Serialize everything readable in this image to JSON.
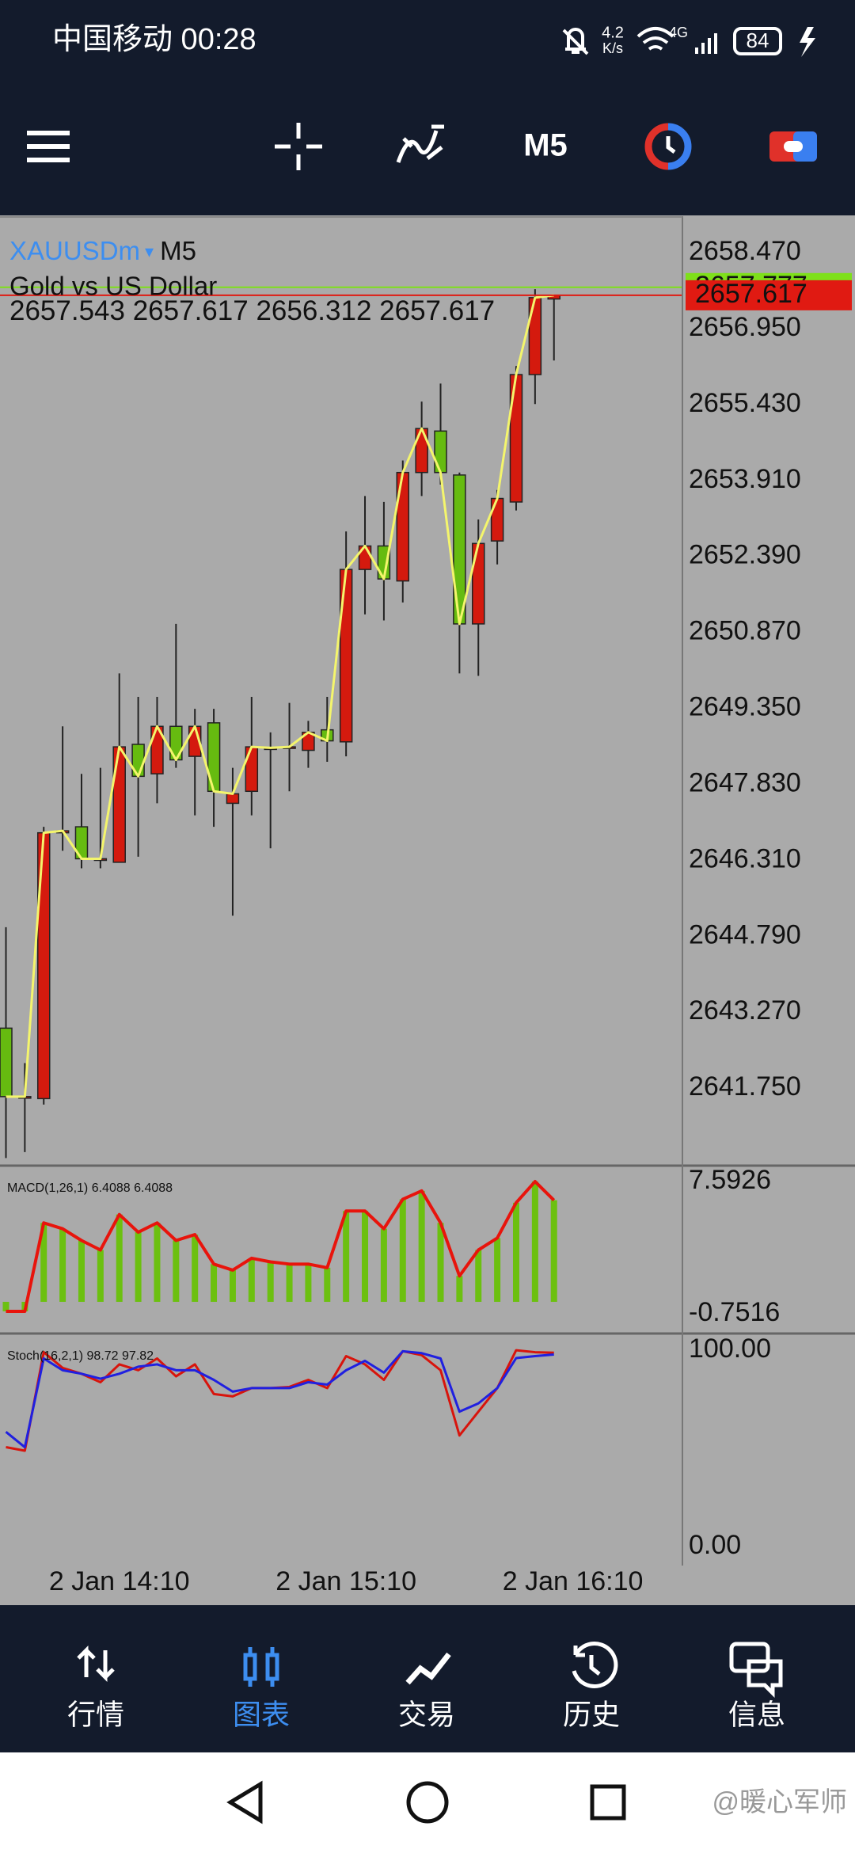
{
  "status_bar": {
    "carrier_time": "中国移动 00:28",
    "speed": "4.2",
    "speed_unit": "K/s",
    "network": "4G",
    "battery": "84"
  },
  "toolbar": {
    "timeframe": "M5"
  },
  "nav": [
    "行情",
    "图表",
    "交易",
    "历史",
    "信息"
  ],
  "watermark": "@暖心军师",
  "chart_data": [
    {
      "type": "candlestick",
      "symbol": "XAUUSDm",
      "timeframe": "M5",
      "description": "Gold vs US Dollar",
      "open": [
        2642.95,
        2641.58,
        2641.54,
        2646.86,
        2646.98,
        2646.34,
        2646.27,
        2648.63,
        2648.04,
        2648.99,
        2648.39,
        2649.06,
        2647.45,
        2647.69,
        2648.56,
        2648.56,
        2648.51,
        2648.92,
        2648.68,
        2652.13,
        2652.6,
        2651.9,
        2654.07,
        2654.9,
        2654.02,
        2651.04,
        2652.7,
        2653.48,
        2656.03,
        2657.543
      ],
      "high": [
        2644.97,
        2642.25,
        2646.98,
        2648.99,
        2648.04,
        2648.16,
        2650.05,
        2649.58,
        2649.58,
        2651.04,
        2649.34,
        2649.34,
        2648.16,
        2649.58,
        2648.87,
        2649.46,
        2649.1,
        2649.58,
        2652.89,
        2653.6,
        2653.48,
        2654.31,
        2655.49,
        2655.85,
        2654.07,
        2653.13,
        2653.72,
        2656.2,
        2657.74,
        2657.617
      ],
      "low": [
        2640.35,
        2640.47,
        2641.42,
        2646.5,
        2646.15,
        2646.15,
        2646.27,
        2646.38,
        2647.45,
        2648.16,
        2647.21,
        2646.98,
        2645.2,
        2647.21,
        2646.55,
        2647.69,
        2648.16,
        2648.28,
        2648.39,
        2651.23,
        2651.11,
        2651.47,
        2653.6,
        2653.83,
        2650.05,
        2650.0,
        2652.23,
        2653.31,
        2655.44,
        2656.312
      ],
      "close": [
        2641.58,
        2641.58,
        2646.86,
        2646.9,
        2646.34,
        2646.34,
        2648.58,
        2647.99,
        2648.99,
        2648.32,
        2648.99,
        2647.69,
        2647.64,
        2648.58,
        2648.56,
        2648.58,
        2648.87,
        2648.7,
        2652.13,
        2652.6,
        2651.94,
        2654.07,
        2654.95,
        2654.07,
        2651.04,
        2652.65,
        2653.55,
        2656.03,
        2657.57,
        2657.617
      ],
      "up_color": "#d41a0e",
      "down_color": "#66bb10",
      "line_color": "#f4f56c",
      "bid_color": "#e01a12",
      "ask": 2657.777,
      "ask_color": "#7ee01a",
      "ylim": [
        2640.23,
        2659.2
      ],
      "yticks": [
        {
          "value": 2658.47,
          "label": "2658.470"
        },
        {
          "value": 2656.95,
          "label": "2656.950"
        },
        {
          "value": 2655.43,
          "label": "2655.430"
        },
        {
          "value": 2653.91,
          "label": "2653.910"
        },
        {
          "value": 2652.39,
          "label": "2652.390"
        },
        {
          "value": 2650.87,
          "label": "2650.870"
        },
        {
          "value": 2649.35,
          "label": "2649.350"
        },
        {
          "value": 2647.83,
          "label": "2647.830"
        },
        {
          "value": 2646.31,
          "label": "2646.310"
        },
        {
          "value": 2644.79,
          "label": "2644.790"
        },
        {
          "value": 2643.27,
          "label": "2643.270"
        },
        {
          "value": 2641.75,
          "label": "2641.750"
        }
      ],
      "xticks": [
        {
          "value": 6,
          "label": "2 Jan 14:10"
        },
        {
          "value": 18,
          "label": "2 Jan 15:10"
        },
        {
          "value": 30,
          "label": "2 Jan 16:10"
        }
      ]
    },
    {
      "type": "bar",
      "ylim": [
        -1.85,
        8.49
      ],
      "yticks": [
        7.5926,
        -0.7516
      ],
      "series": [
        {
          "name": "MACD(1,26,1)",
          "style": "bar",
          "color": "#6cc010",
          "values": [
            -0.6,
            -0.6,
            4.98,
            4.61,
            3.87,
            3.27,
            5.51,
            4.39,
            4.98,
            3.87,
            4.24,
            2.38,
            2.0,
            2.75,
            2.52,
            2.38,
            2.38,
            2.15,
            5.73,
            5.73,
            4.61,
            6.47,
            7.0,
            4.98,
            1.63,
            3.27,
            4.02,
            6.25,
            7.59,
            6.4088
          ]
        },
        {
          "style": "line",
          "color": "#e8140c",
          "values": [
            -0.6,
            -0.6,
            4.98,
            4.61,
            3.87,
            3.27,
            5.51,
            4.39,
            4.98,
            3.87,
            4.24,
            2.38,
            2.0,
            2.75,
            2.52,
            2.38,
            2.38,
            2.15,
            5.73,
            5.73,
            4.61,
            6.47,
            7.0,
            4.98,
            1.63,
            3.27,
            4.02,
            6.25,
            7.59,
            6.4088
          ]
        }
      ]
    },
    {
      "type": "line",
      "ylim": [
        -9.7,
        107.7
      ],
      "yticks": [
        {
          "value": 100,
          "label": "100.00"
        },
        {
          "value": 0,
          "label": "0.00"
        }
      ],
      "series": [
        {
          "name": "Stoch(16,2,1)",
          "color": "#d8140c",
          "values": [
            50.6,
            48.8,
            99.0,
            91.0,
            88.0,
            83.7,
            92.8,
            89.8,
            95.8,
            86.7,
            92.8,
            77.7,
            76.5,
            80.7,
            80.7,
            81.3,
            84.9,
            80.7,
            97.0,
            92.8,
            84.9,
            99.5,
            97.5,
            89.8,
            56.6,
            68.7,
            80.7,
            100,
            99.0,
            98.72
          ]
        },
        {
          "color": "#2020e0",
          "values": [
            58.4,
            50.6,
            95.8,
            89.8,
            88.0,
            85.5,
            88.0,
            91.6,
            92.8,
            89.8,
            89.8,
            84.9,
            78.9,
            80.7,
            80.7,
            80.7,
            83.7,
            82.5,
            89.8,
            94.6,
            88.6,
            99.5,
            98.5,
            95.8,
            68.7,
            72.9,
            80.7,
            96.0,
            97.0,
            97.82
          ]
        }
      ]
    }
  ]
}
